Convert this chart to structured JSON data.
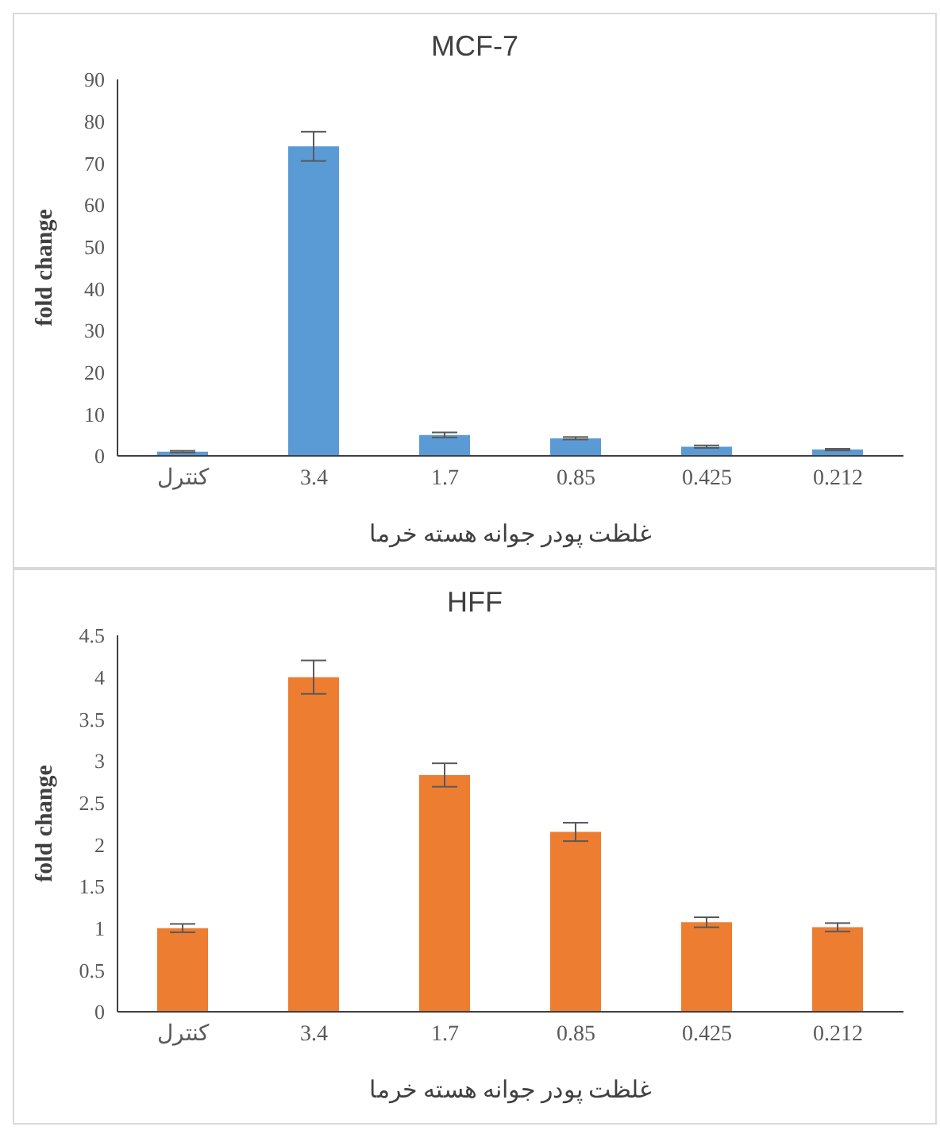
{
  "chart_data": [
    {
      "type": "bar",
      "title": "MCF-7",
      "xlabel": "غلظت پودر جوانه هسته خرما",
      "ylabel": "fold change",
      "categories": [
        "کنترل",
        "3.4",
        "1.7",
        "0.85",
        "0.425",
        "0.212"
      ],
      "values": [
        1,
        74,
        5,
        4.2,
        2.2,
        1.5
      ],
      "errors": [
        0.2,
        3.5,
        0.6,
        0.3,
        0.3,
        0.2
      ],
      "color": "#5b9bd5",
      "ylim": [
        0,
        90
      ],
      "yticks": [
        0,
        10,
        20,
        30,
        40,
        50,
        60,
        70,
        80,
        90
      ],
      "grid": false,
      "legend": false
    },
    {
      "type": "bar",
      "title": "HFF",
      "xlabel": "غلظت پودر جوانه هسته خرما",
      "ylabel": "fold change",
      "categories": [
        "کنترل",
        "3.4",
        "1.7",
        "0.85",
        "0.425",
        "0.212"
      ],
      "values": [
        1,
        4,
        2.83,
        2.15,
        1.07,
        1.01
      ],
      "errors": [
        0.05,
        0.2,
        0.14,
        0.11,
        0.06,
        0.05
      ],
      "color": "#ed7d31",
      "ylim": [
        0,
        4.5
      ],
      "yticks": [
        0,
        0.5,
        1,
        1.5,
        2,
        2.5,
        3,
        3.5,
        4,
        4.5
      ],
      "grid": false,
      "legend": false
    }
  ]
}
